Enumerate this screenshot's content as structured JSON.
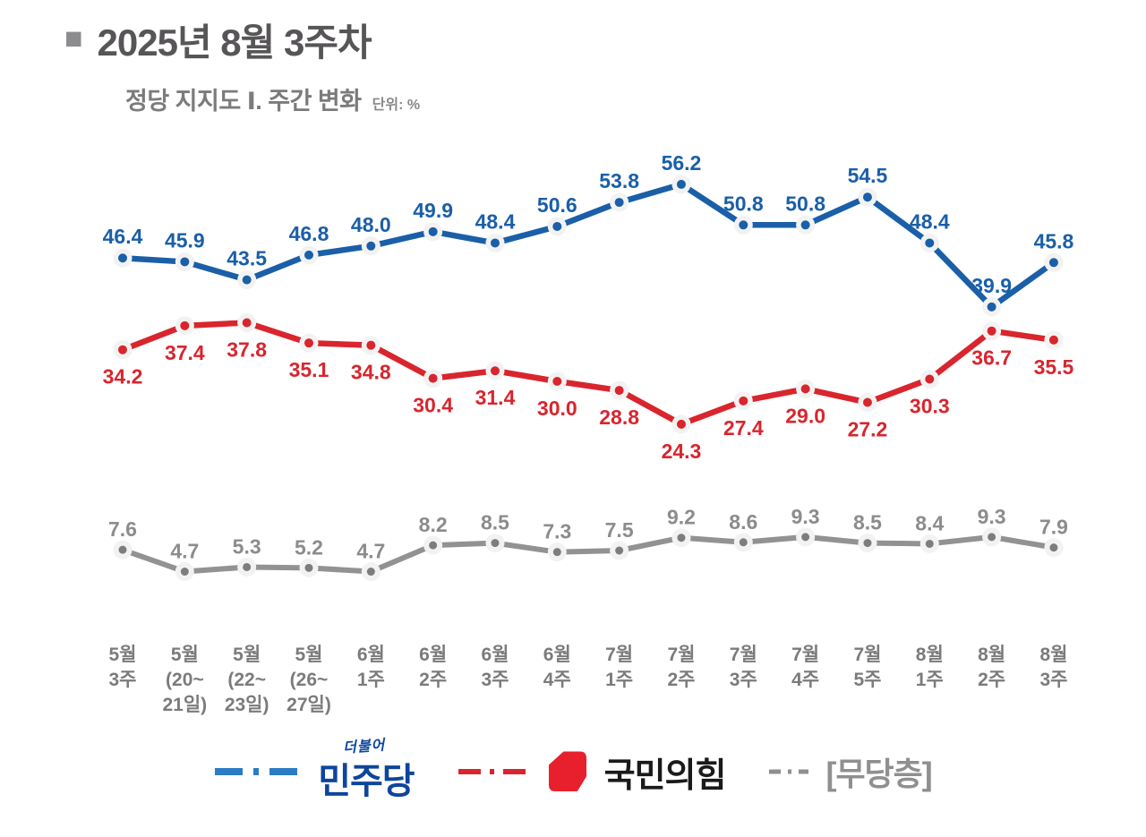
{
  "header": {
    "bullet": "■",
    "title": "2025년 8월 3주차",
    "subtitle": "정당 지지도 Ⅰ. 주간 변화",
    "unit_label": "단위: %"
  },
  "chart_data": {
    "type": "line",
    "title": "정당 지지도 Ⅰ. 주간 변화",
    "unit": "%",
    "grid": false,
    "ylim": [
      0,
      60
    ],
    "legend_position": "bottom",
    "categories": [
      [
        "5월",
        "3주"
      ],
      [
        "5월",
        "(20~",
        "21일)"
      ],
      [
        "5월",
        "(22~",
        "23일)"
      ],
      [
        "5월",
        "(26~",
        "27일)"
      ],
      [
        "6월",
        "1주"
      ],
      [
        "6월",
        "2주"
      ],
      [
        "6월",
        "3주"
      ],
      [
        "6월",
        "4주"
      ],
      [
        "7월",
        "1주"
      ],
      [
        "7월",
        "2주"
      ],
      [
        "7월",
        "3주"
      ],
      [
        "7월",
        "4주"
      ],
      [
        "7월",
        "5주"
      ],
      [
        "8월",
        "1주"
      ],
      [
        "8월",
        "2주"
      ],
      [
        "8월",
        "3주"
      ]
    ],
    "series": [
      {
        "name": "민주당",
        "color": "#1a5fa8",
        "label_color": "#1a5fa8",
        "values": [
          46.4,
          45.9,
          43.5,
          46.8,
          48.0,
          49.9,
          48.4,
          50.6,
          53.8,
          56.2,
          50.8,
          50.8,
          54.5,
          48.4,
          39.9,
          45.8
        ]
      },
      {
        "name": "국민의힘",
        "color": "#d9252d",
        "label_color": "#d9252d",
        "values": [
          34.2,
          37.4,
          37.8,
          35.1,
          34.8,
          30.4,
          31.4,
          30.0,
          28.8,
          24.3,
          27.4,
          29.0,
          27.2,
          30.3,
          36.7,
          35.5
        ]
      },
      {
        "name": "무당층",
        "color": "#929292",
        "label_color": "#8c8c8c",
        "values": [
          7.6,
          4.7,
          5.3,
          5.2,
          4.7,
          8.2,
          8.5,
          7.3,
          7.5,
          9.2,
          8.6,
          9.3,
          8.5,
          8.4,
          9.3,
          7.9
        ]
      }
    ]
  },
  "legend": {
    "items": [
      {
        "prefix": "더불어",
        "label": "민주당",
        "text_color": "#0e459c",
        "line_color": "#2b7cc4"
      },
      {
        "label": "국민의힘",
        "text_color": "#1a1a1a",
        "line_color": "#d9252d",
        "logo_color": "#e8202d"
      },
      {
        "label": "[무당층]",
        "text_color": "#8f8f8f",
        "line_color": "#8f8f8f"
      }
    ]
  }
}
